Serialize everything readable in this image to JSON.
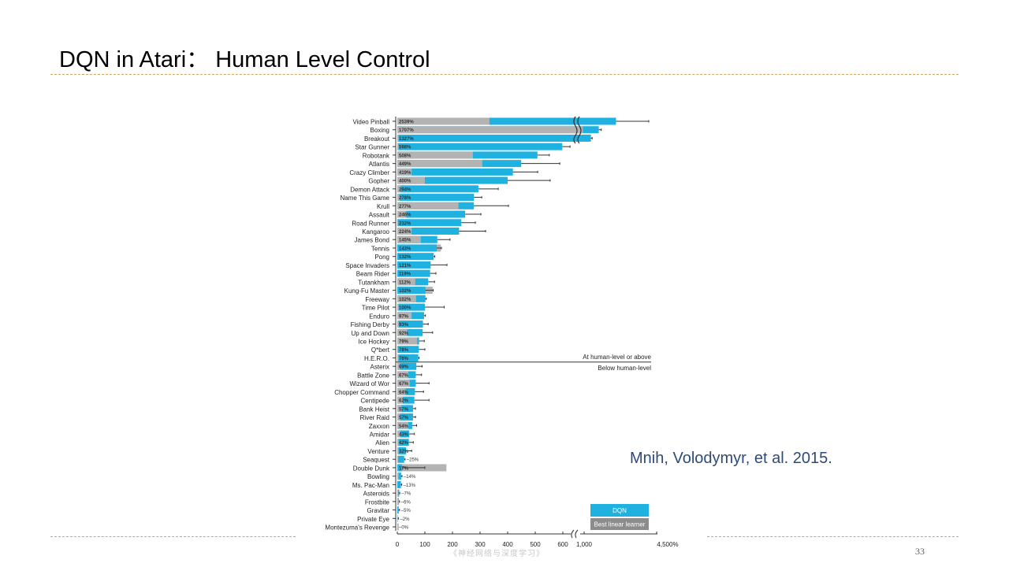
{
  "slide": {
    "title": "DQN in Atari： Human Level Control",
    "citation": "Mnih, Volodymyr, et al. 2015.",
    "footer": "《神经网络与深度学习》",
    "page_number": "33"
  },
  "colors": {
    "dqn": "#1fb1e0",
    "linear": "#b3b3b3",
    "accent_dash": "#d9a15a",
    "citation": "#2e4a78"
  },
  "chart_data": {
    "type": "bar",
    "orientation": "horizontal",
    "xlabel_ticks": [
      "0",
      "100",
      "200",
      "300",
      "400",
      "500",
      "600",
      "1,000",
      "4,500%"
    ],
    "axis_break": [
      630,
      1000
    ],
    "xlim": [
      0,
      4500
    ],
    "threshold_label_above": "At human-level or above",
    "threshold_label_below": "Below human-level",
    "threshold_after_index": 28,
    "legend": [
      {
        "name": "DQN"
      },
      {
        "name": "Best linear learner"
      }
    ],
    "legend_position": "bottom-right",
    "games": [
      {
        "name": "Video Pinball",
        "dqn": 2539,
        "linear": 334,
        "err": 4120,
        "label": "2539%"
      },
      {
        "name": "Boxing",
        "dqn": 1707,
        "linear": 960,
        "err": 1830,
        "label": "1707%"
      },
      {
        "name": "Breakout",
        "dqn": 1327,
        "linear": 5,
        "err": 1390,
        "label": "1327%"
      },
      {
        "name": "Star Gunner",
        "dqn": 598,
        "linear": 5,
        "err": 626,
        "label": "598%"
      },
      {
        "name": "Robotank",
        "dqn": 508,
        "linear": 274,
        "err": 551,
        "label": "508%"
      },
      {
        "name": "Atlantis",
        "dqn": 449,
        "linear": 308,
        "err": 589,
        "label": "449%"
      },
      {
        "name": "Crazy Climber",
        "dqn": 419,
        "linear": 52,
        "err": 509,
        "label": "419%"
      },
      {
        "name": "Gopher",
        "dqn": 400,
        "linear": 100,
        "err": 554,
        "label": "400%"
      },
      {
        "name": "Demon Attack",
        "dqn": 294,
        "linear": 12,
        "err": 366,
        "label": "294%"
      },
      {
        "name": "Name This Game",
        "dqn": 278,
        "linear": 8,
        "err": 306,
        "label": "278%"
      },
      {
        "name": "Krull",
        "dqn": 277,
        "linear": 222,
        "err": 403,
        "label": "277%"
      },
      {
        "name": "Assault",
        "dqn": 246,
        "linear": 32,
        "err": 303,
        "label": "246%"
      },
      {
        "name": "Road Runner",
        "dqn": 232,
        "linear": 2,
        "err": 283,
        "label": "232%"
      },
      {
        "name": "Kangaroo",
        "dqn": 224,
        "linear": 52,
        "err": 320,
        "label": "224%"
      },
      {
        "name": "James Bond",
        "dqn": 145,
        "linear": 85,
        "err": 191,
        "label": "145%"
      },
      {
        "name": "Tennis",
        "dqn": 143,
        "linear": 158,
        "err": 160,
        "label": "143%"
      },
      {
        "name": "Pong",
        "dqn": 132,
        "linear": 0,
        "err": 136,
        "label": "132%"
      },
      {
        "name": "Space Invaders",
        "dqn": 121,
        "linear": 0,
        "err": 180,
        "label": "121%"
      },
      {
        "name": "Beam Rider",
        "dqn": 119,
        "linear": 0,
        "err": 140,
        "label": "119%"
      },
      {
        "name": "Tutankham",
        "dqn": 112,
        "linear": 65,
        "err": 135,
        "label": "112%"
      },
      {
        "name": "Kung-Fu Master",
        "dqn": 102,
        "linear": 128,
        "err": 130,
        "label": "102%"
      },
      {
        "name": "Freeway",
        "dqn": 102,
        "linear": 68,
        "err": 105,
        "label": "102%"
      },
      {
        "name": "Time Pilot",
        "dqn": 100,
        "linear": 5,
        "err": 170,
        "label": "100%"
      },
      {
        "name": "Enduro",
        "dqn": 97,
        "linear": 52,
        "err": 102,
        "label": "97%"
      },
      {
        "name": "Fishing Derby",
        "dqn": 93,
        "linear": 5,
        "err": 112,
        "label": "93%"
      },
      {
        "name": "Up and Down",
        "dqn": 92,
        "linear": 36,
        "err": 128,
        "label": "92%"
      },
      {
        "name": "Ice Hockey",
        "dqn": 79,
        "linear": 72,
        "err": 98,
        "label": "79%"
      },
      {
        "name": "Q*bert",
        "dqn": 78,
        "linear": 2,
        "err": 100,
        "label": "78%"
      },
      {
        "name": "H.E.R.O.",
        "dqn": 76,
        "linear": 5,
        "err": 79,
        "label": "76%"
      },
      {
        "name": "Asterix",
        "dqn": 69,
        "linear": 10,
        "err": 90,
        "label": "69%"
      },
      {
        "name": "Battle Zone",
        "dqn": 67,
        "linear": 40,
        "err": 88,
        "label": "67%"
      },
      {
        "name": "Wizard of Wor",
        "dqn": 67,
        "linear": 45,
        "err": 115,
        "label": "67%"
      },
      {
        "name": "Chopper Command",
        "dqn": 64,
        "linear": 30,
        "err": 95,
        "label": "64%"
      },
      {
        "name": "Centipede",
        "dqn": 62,
        "linear": 20,
        "err": 115,
        "label": "62%"
      },
      {
        "name": "Bank Heist",
        "dqn": 57,
        "linear": 15,
        "err": 66,
        "label": "57%"
      },
      {
        "name": "River Raid",
        "dqn": 57,
        "linear": 10,
        "err": 66,
        "label": "57%"
      },
      {
        "name": "Zaxxon",
        "dqn": 54,
        "linear": 40,
        "err": 70,
        "label": "54%"
      },
      {
        "name": "Amidar",
        "dqn": 43,
        "linear": 10,
        "err": 62,
        "label": "43%"
      },
      {
        "name": "Alien",
        "dqn": 42,
        "linear": 5,
        "err": 58,
        "label": "42%"
      },
      {
        "name": "Venture",
        "dqn": 32,
        "linear": 5,
        "err": 52,
        "label": "32%"
      },
      {
        "name": "Seaquest",
        "dqn": 25,
        "linear": 3,
        "err": 28,
        "label": "25%"
      },
      {
        "name": "Double Dunk",
        "dqn": 17,
        "linear": 178,
        "err": 100,
        "label": "17%"
      },
      {
        "name": "Bowling",
        "dqn": 14,
        "linear": 5,
        "err": 17,
        "label": "14%"
      },
      {
        "name": "Ms. Pac-Man",
        "dqn": 13,
        "linear": 13,
        "err": 16,
        "label": "13%"
      },
      {
        "name": "Asteroids",
        "dqn": 7,
        "linear": 3,
        "err": 9,
        "label": "7%"
      },
      {
        "name": "Frostbite",
        "dqn": 6,
        "linear": 5,
        "err": 8,
        "label": "6%"
      },
      {
        "name": "Gravitar",
        "dqn": 5,
        "linear": 5,
        "err": 8,
        "label": "5%"
      },
      {
        "name": "Private Eye",
        "dqn": 2,
        "linear": 1,
        "err": 4,
        "label": "2%"
      },
      {
        "name": "Montezuma's Revenge",
        "dqn": 0,
        "linear": 5,
        "err": 0,
        "label": "0%"
      }
    ]
  }
}
